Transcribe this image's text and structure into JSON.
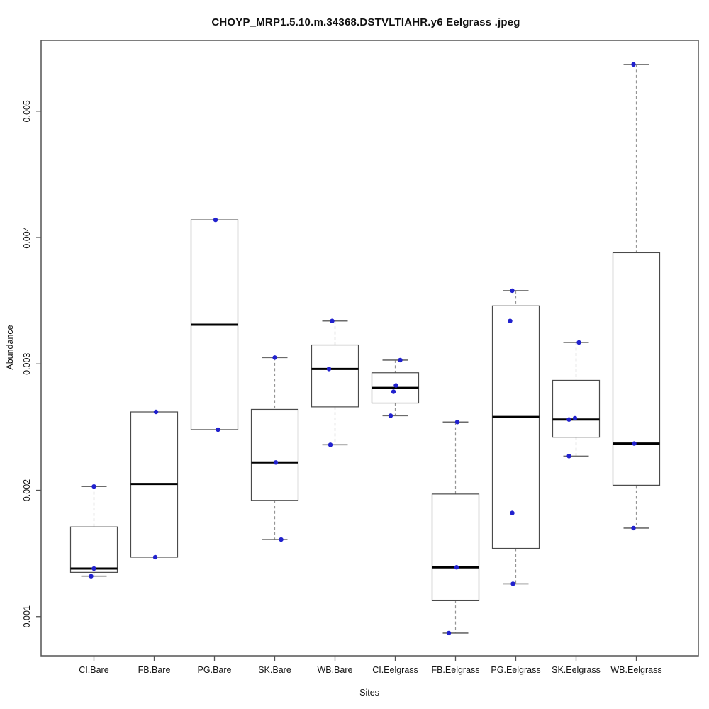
{
  "chart_data": {
    "type": "boxplot",
    "title": "CHOYP_MRP1.5.10.m.34368.DSTVLTIAHR.y6 Eelgrass .jpeg",
    "xlabel": "Sites",
    "ylabel": "Abundance",
    "ylim": [
      0.00069,
      0.00556
    ],
    "yticks": [
      0.001,
      0.002,
      0.003,
      0.004,
      0.005
    ],
    "ytick_labels": [
      "0.001",
      "0.002",
      "0.003",
      "0.004",
      "0.005"
    ],
    "grid": "off",
    "legend": "none",
    "categories": [
      "CI.Bare",
      "FB.Bare",
      "PG.Bare",
      "SK.Bare",
      "WB.Bare",
      "CI.Eelgrass",
      "FB.Eelgrass",
      "PG.Eelgrass",
      "SK.Eelgrass",
      "WB.Eelgrass"
    ],
    "colors": {
      "point": "#2121CE",
      "box_stroke": "#4a4a4a",
      "box_fill": "#ffffff",
      "median": "#000000",
      "whisker_dash": "#949494",
      "whisker_cap": "#6b6b6b",
      "frame": "#545454"
    },
    "boxes": [
      {
        "label": "CI.Bare",
        "whisker_low": 0.00132,
        "q1": 0.00135,
        "median": 0.00138,
        "q3": 0.00171,
        "whisker_high": 0.00203,
        "points": [
          {
            "value": 0.00203,
            "dx": 0
          },
          {
            "value": 0.00138,
            "dx": 0
          },
          {
            "value": 0.00132,
            "dx": -4
          }
        ]
      },
      {
        "label": "FB.Bare",
        "whisker_low": 0.00147,
        "q1": 0.00147,
        "median": 0.00205,
        "q3": 0.00262,
        "whisker_high": 0.00262,
        "points": [
          {
            "value": 0.00262,
            "dx": 2.5
          },
          {
            "value": 0.00147,
            "dx": 1.5
          }
        ]
      },
      {
        "label": "PG.Bare",
        "whisker_low": 0.00248,
        "q1": 0.00248,
        "median": 0.00331,
        "q3": 0.00414,
        "whisker_high": 0.00414,
        "points": [
          {
            "value": 0.00414,
            "dx": 1.5
          },
          {
            "value": 0.00248,
            "dx": 5
          }
        ]
      },
      {
        "label": "SK.Bare",
        "whisker_low": 0.00161,
        "q1": 0.00192,
        "median": 0.00222,
        "q3": 0.00264,
        "whisker_high": 0.00305,
        "points": [
          {
            "value": 0.00305,
            "dx": 0
          },
          {
            "value": 0.00222,
            "dx": 1.5
          },
          {
            "value": 0.00161,
            "dx": 9
          }
        ]
      },
      {
        "label": "WB.Bare",
        "whisker_low": 0.00236,
        "q1": 0.00266,
        "median": 0.00296,
        "q3": 0.00315,
        "whisker_high": 0.00334,
        "points": [
          {
            "value": 0.00334,
            "dx": -4
          },
          {
            "value": 0.00296,
            "dx": -8.5
          },
          {
            "value": 0.00236,
            "dx": -6.5
          }
        ]
      },
      {
        "label": "CI.Eelgrass",
        "whisker_low": 0.00259,
        "q1": 0.00269,
        "median": 0.00281,
        "q3": 0.00293,
        "whisker_high": 0.00303,
        "points": [
          {
            "value": 0.00303,
            "dx": 7
          },
          {
            "value": 0.00283,
            "dx": 1
          },
          {
            "value": 0.00278,
            "dx": -2.5
          },
          {
            "value": 0.00259,
            "dx": -6.5
          }
        ]
      },
      {
        "label": "FB.Eelgrass",
        "whisker_low": 0.00087,
        "q1": 0.00113,
        "median": 0.00139,
        "q3": 0.00197,
        "whisker_high": 0.00254,
        "points": [
          {
            "value": 0.00254,
            "dx": 2.5
          },
          {
            "value": 0.00139,
            "dx": 1.5
          },
          {
            "value": 0.00087,
            "dx": -9.5
          }
        ]
      },
      {
        "label": "PG.Eelgrass",
        "whisker_low": 0.00126,
        "q1": 0.00154,
        "median": 0.00258,
        "q3": 0.00346,
        "whisker_high": 0.00358,
        "points": [
          {
            "value": 0.00358,
            "dx": -5
          },
          {
            "value": 0.00334,
            "dx": -8
          },
          {
            "value": 0.00182,
            "dx": -5
          },
          {
            "value": 0.00126,
            "dx": -4
          }
        ]
      },
      {
        "label": "SK.Eelgrass",
        "whisker_low": 0.00227,
        "q1": 0.00242,
        "median": 0.00256,
        "q3": 0.00287,
        "whisker_high": 0.00317,
        "points": [
          {
            "value": 0.00317,
            "dx": 4
          },
          {
            "value": 0.00257,
            "dx": -1.5
          },
          {
            "value": 0.00256,
            "dx": -10
          },
          {
            "value": 0.00227,
            "dx": -10
          }
        ]
      },
      {
        "label": "WB.Eelgrass",
        "whisker_low": 0.0017,
        "q1": 0.00204,
        "median": 0.00237,
        "q3": 0.00388,
        "whisker_high": 0.00537,
        "points": [
          {
            "value": 0.00537,
            "dx": -4
          },
          {
            "value": 0.00237,
            "dx": -3
          },
          {
            "value": 0.0017,
            "dx": -4
          }
        ]
      }
    ]
  }
}
